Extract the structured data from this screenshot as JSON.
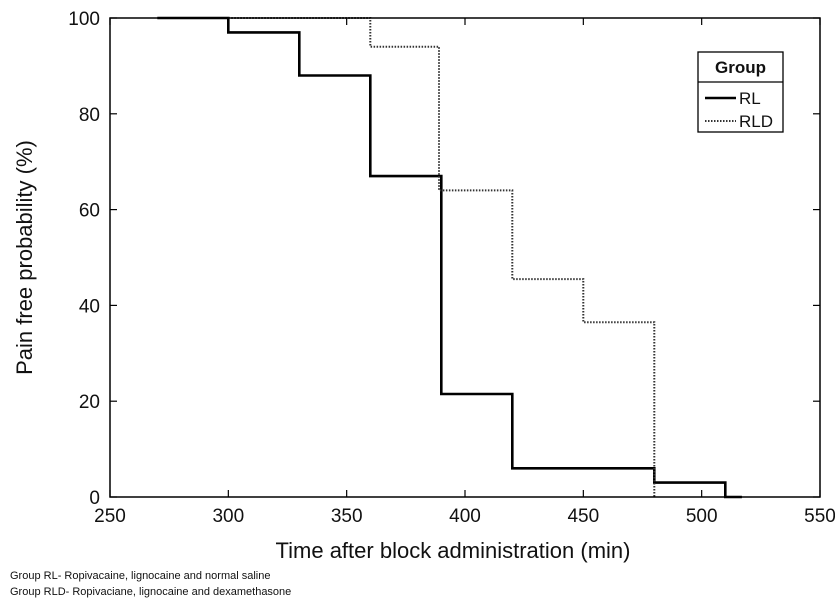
{
  "chart_data": {
    "type": "line",
    "title": "",
    "xlabel": "Time after block administration (min)",
    "ylabel": "Pain free probability (%)",
    "xlim": [
      250,
      550
    ],
    "ylim": [
      0,
      100
    ],
    "xticks": [
      "250",
      "300",
      "350",
      "400",
      "450",
      "500",
      "550"
    ],
    "yticks": [
      "0",
      "20",
      "40",
      "60",
      "80",
      "100"
    ],
    "grid": false,
    "legend": {
      "title": "Group",
      "position": "top-right",
      "entries": [
        "RL",
        "RLD"
      ]
    },
    "series": [
      {
        "name": "RL",
        "style": "solid",
        "x": [
          270,
          300,
          300,
          330,
          330,
          360,
          360,
          390,
          390,
          420,
          420,
          480,
          480,
          510,
          510,
          517
        ],
        "y": [
          100,
          100,
          97,
          97,
          88,
          88,
          67,
          67,
          21.5,
          21.5,
          6,
          6,
          3,
          3,
          0,
          0
        ]
      },
      {
        "name": "RLD",
        "style": "dotted",
        "x": [
          300,
          360,
          360,
          389,
          389,
          420,
          420,
          450,
          450,
          480,
          480
        ],
        "y": [
          100,
          100,
          94,
          94,
          64,
          64,
          45.5,
          45.5,
          36.5,
          36.5,
          0
        ]
      }
    ]
  },
  "footnotes": [
    "Group RL- Ropivacaine, lignocaine and normal saline",
    "Group RLD- Ropivaciane, lignocaine and dexamethasone"
  ]
}
